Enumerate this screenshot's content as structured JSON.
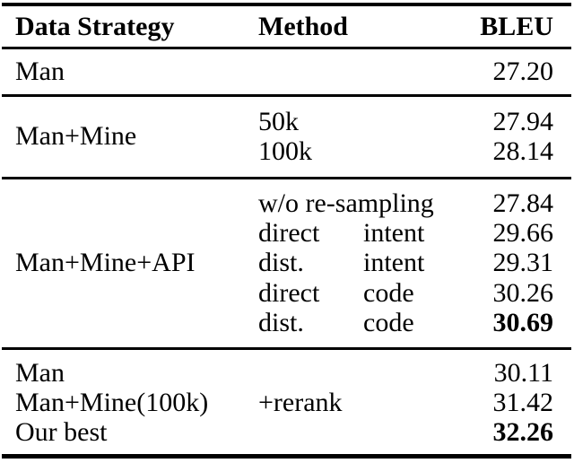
{
  "table": {
    "title_hint": "results table",
    "header": {
      "data_strategy": "Data Strategy",
      "method": "Method",
      "bleu": "BLEU"
    },
    "sections": [
      {
        "rows": [
          {
            "strategy": "Man",
            "bleu": "27.20"
          }
        ]
      },
      {
        "strategy": "Man+Mine",
        "rows": [
          {
            "method": "50k",
            "bleu": "27.94"
          },
          {
            "method": "100k",
            "bleu": "28.14"
          }
        ]
      },
      {
        "strategy": "Man+Mine+API",
        "rows": [
          {
            "method": "w/o re-sampling",
            "bleu": "27.84"
          },
          {
            "method": "direct",
            "method2": "intent",
            "bleu": "29.66"
          },
          {
            "method": "dist.",
            "method2": "intent",
            "bleu": "29.31"
          },
          {
            "method": "direct",
            "method2": "code",
            "bleu": "30.26"
          },
          {
            "method": "dist.",
            "method2": "code",
            "bleu": "30.69",
            "bold": true
          }
        ]
      },
      {
        "rows": [
          {
            "strategy": "Man",
            "bleu": "30.11"
          },
          {
            "strategy": "Man+Mine(100k)",
            "method": "+rerank",
            "bleu": "31.42"
          },
          {
            "strategy": "Our best",
            "bleu": "32.26",
            "bold": true
          }
        ]
      }
    ]
  }
}
